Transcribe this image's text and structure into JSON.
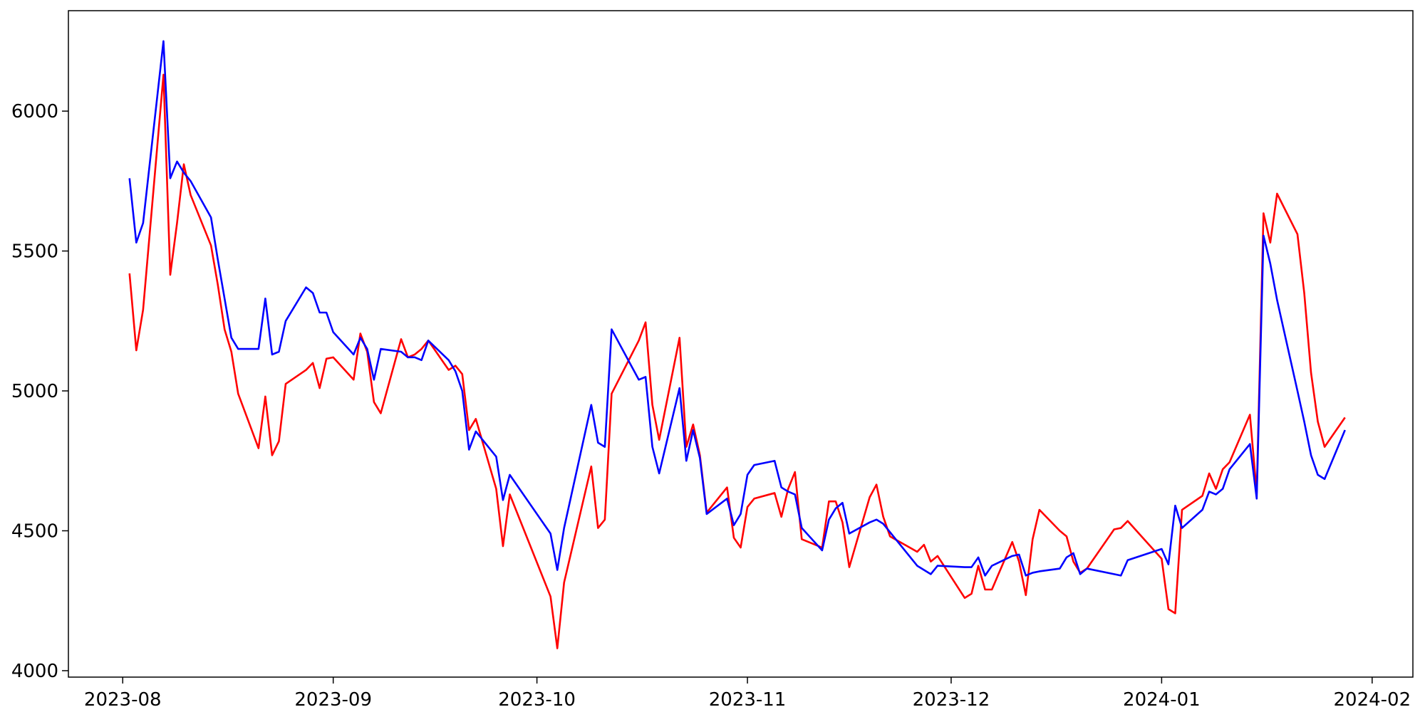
{
  "chart_data": {
    "type": "line",
    "x": [
      "2023-08-02",
      "2023-08-03",
      "2023-08-04",
      "2023-08-07",
      "2023-08-08",
      "2023-08-09",
      "2023-08-10",
      "2023-08-11",
      "2023-08-14",
      "2023-08-15",
      "2023-08-16",
      "2023-08-17",
      "2023-08-18",
      "2023-08-21",
      "2023-08-22",
      "2023-08-23",
      "2023-08-24",
      "2023-08-25",
      "2023-08-28",
      "2023-08-29",
      "2023-08-30",
      "2023-08-31",
      "2023-09-01",
      "2023-09-04",
      "2023-09-05",
      "2023-09-06",
      "2023-09-07",
      "2023-09-08",
      "2023-09-11",
      "2023-09-12",
      "2023-09-13",
      "2023-09-14",
      "2023-09-15",
      "2023-09-18",
      "2023-09-19",
      "2023-09-20",
      "2023-09-21",
      "2023-09-22",
      "2023-09-25",
      "2023-09-26",
      "2023-09-27",
      "2023-10-03",
      "2023-10-04",
      "2023-10-05",
      "2023-10-09",
      "2023-10-10",
      "2023-10-11",
      "2023-10-12",
      "2023-10-16",
      "2023-10-17",
      "2023-10-18",
      "2023-10-19",
      "2023-10-22",
      "2023-10-23",
      "2023-10-24",
      "2023-10-25",
      "2023-10-26",
      "2023-10-29",
      "2023-10-30",
      "2023-10-31",
      "2023-11-01",
      "2023-11-02",
      "2023-11-05",
      "2023-11-06",
      "2023-11-07",
      "2023-11-08",
      "2023-11-09",
      "2023-11-12",
      "2023-11-13",
      "2023-11-14",
      "2023-11-15",
      "2023-11-16",
      "2023-11-19",
      "2023-11-20",
      "2023-11-21",
      "2023-11-22",
      "2023-11-26",
      "2023-11-27",
      "2023-11-28",
      "2023-11-29",
      "2023-12-03",
      "2023-12-04",
      "2023-12-05",
      "2023-12-06",
      "2023-12-07",
      "2023-12-10",
      "2023-12-11",
      "2023-12-12",
      "2023-12-13",
      "2023-12-14",
      "2023-12-17",
      "2023-12-18",
      "2023-12-19",
      "2023-12-20",
      "2023-12-21",
      "2023-12-25",
      "2023-12-26",
      "2023-12-27",
      "2024-01-01",
      "2024-01-02",
      "2024-01-03",
      "2024-01-04",
      "2024-01-07",
      "2024-01-08",
      "2024-01-09",
      "2024-01-10",
      "2024-01-11",
      "2024-01-14",
      "2024-01-15",
      "2024-01-16",
      "2024-01-17",
      "2024-01-18",
      "2024-01-21",
      "2024-01-22",
      "2024-01-23",
      "2024-01-24",
      "2024-01-25",
      "2024-01-28"
    ],
    "series": [
      {
        "color": "#ff0000",
        "values": [
          5420,
          5145,
          5290,
          6130,
          5415,
          5600,
          5810,
          5700,
          5520,
          5380,
          5220,
          5140,
          4990,
          4795,
          4980,
          4770,
          4820,
          5025,
          5075,
          5100,
          5010,
          5115,
          5120,
          5040,
          5205,
          5140,
          4960,
          4920,
          5185,
          5120,
          5130,
          5150,
          5180,
          5075,
          5090,
          5060,
          4860,
          4900,
          4650,
          4445,
          4630,
          4265,
          4080,
          4315,
          4730,
          4510,
          4540,
          4990,
          5180,
          5245,
          4950,
          4825,
          5190,
          4800,
          4880,
          4770,
          4565,
          4655,
          4475,
          4440,
          4585,
          4615,
          4635,
          4550,
          4650,
          4710,
          4470,
          4440,
          4605,
          4605,
          4530,
          4370,
          4620,
          4665,
          4550,
          4480,
          4425,
          4450,
          4390,
          4410,
          4260,
          4275,
          4375,
          4290,
          4290,
          4460,
          4390,
          4270,
          4470,
          4575,
          4500,
          4480,
          4390,
          4350,
          4365,
          4505,
          4510,
          4535,
          4400,
          4220,
          4205,
          4575,
          4625,
          4705,
          4650,
          4720,
          4745,
          4915,
          4635,
          5635,
          5530,
          5705,
          5560,
          5350,
          5065,
          4890,
          4800,
          4905
        ]
      },
      {
        "color": "#0000ff",
        "values": [
          5760,
          5530,
          5600,
          6250,
          5760,
          5820,
          5780,
          5750,
          5620,
          5470,
          5330,
          5190,
          5150,
          5150,
          5330,
          5130,
          5140,
          5250,
          5370,
          5350,
          5280,
          5280,
          5210,
          5130,
          5190,
          5150,
          5040,
          5150,
          5140,
          5120,
          5120,
          5110,
          5180,
          5110,
          5070,
          5000,
          4790,
          4855,
          4765,
          4610,
          4700,
          4490,
          4360,
          4510,
          4950,
          4815,
          4800,
          5220,
          5040,
          5050,
          4800,
          4705,
          5010,
          4750,
          4860,
          4760,
          4560,
          4615,
          4520,
          4560,
          4700,
          4735,
          4750,
          4655,
          4640,
          4630,
          4510,
          4430,
          4540,
          4580,
          4600,
          4490,
          4530,
          4540,
          4525,
          4495,
          4375,
          4360,
          4345,
          4375,
          4370,
          4370,
          4405,
          4340,
          4375,
          4410,
          4415,
          4340,
          4350,
          4355,
          4365,
          4405,
          4420,
          4345,
          4365,
          4345,
          4340,
          4395,
          4435,
          4380,
          4590,
          4510,
          4575,
          4640,
          4630,
          4650,
          4720,
          4810,
          4615,
          5555,
          5455,
          5325,
          5000,
          4890,
          4770,
          4700,
          4685,
          4860
        ]
      }
    ],
    "xlim": [
      "2023-07-24",
      "2024-02-07"
    ],
    "xticks": [
      {
        "value": "2023-08-01",
        "label": "2023-08"
      },
      {
        "value": "2023-09-01",
        "label": "2023-09"
      },
      {
        "value": "2023-10-01",
        "label": "2023-10"
      },
      {
        "value": "2023-11-01",
        "label": "2023-11"
      },
      {
        "value": "2023-12-01",
        "label": "2023-12"
      },
      {
        "value": "2024-01-01",
        "label": "2024-01"
      },
      {
        "value": "2024-02-01",
        "label": "2024-02"
      }
    ],
    "ylim": [
      3977,
      6359
    ],
    "yticks": [
      4000,
      4500,
      5000,
      5500,
      6000
    ],
    "grid": false
  }
}
